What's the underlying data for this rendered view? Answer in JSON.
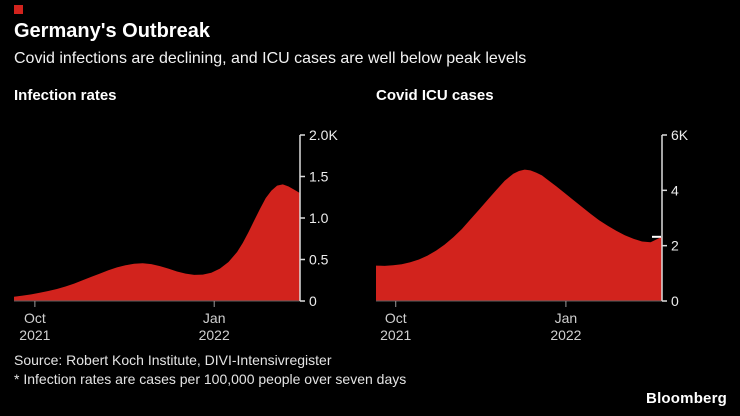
{
  "page": {
    "accent_color": "#d2231d",
    "title": "Germany's Outbreak",
    "subtitle": "Covid infections are declining, and ICU cases are well below peak levels"
  },
  "footer": {
    "source": "Source: Robert Koch Institute, DIVI-Intensivregister",
    "note": "* Infection rates are cases per 100,000 people over seven days",
    "brand": "Bloomberg"
  },
  "chart_data": [
    {
      "type": "area",
      "title": "Infection rates",
      "fill": "#d2231d",
      "background": "#000000",
      "grid": false,
      "y_axis_side": "right",
      "ylim": [
        0,
        2000
      ],
      "yticks": [
        {
          "v": 2000,
          "label": "2.0K"
        },
        {
          "v": 1500,
          "label": "1.5"
        },
        {
          "v": 1000,
          "label": "1.0"
        },
        {
          "v": 500,
          "label": "0.5"
        },
        {
          "v": 0,
          "label": "0"
        }
      ],
      "xticks": [
        {
          "f": 0.073,
          "label": "Oct",
          "year": "2021"
        },
        {
          "f": 0.7,
          "label": "Jan",
          "year": "2022"
        }
      ],
      "marker_value": null,
      "points": [
        [
          0.0,
          50
        ],
        [
          0.03,
          65
        ],
        [
          0.06,
          80
        ],
        [
          0.09,
          100
        ],
        [
          0.12,
          120
        ],
        [
          0.15,
          145
        ],
        [
          0.18,
          175
        ],
        [
          0.21,
          210
        ],
        [
          0.24,
          250
        ],
        [
          0.27,
          290
        ],
        [
          0.3,
          330
        ],
        [
          0.33,
          370
        ],
        [
          0.36,
          405
        ],
        [
          0.39,
          430
        ],
        [
          0.42,
          450
        ],
        [
          0.45,
          455
        ],
        [
          0.48,
          445
        ],
        [
          0.51,
          420
        ],
        [
          0.54,
          390
        ],
        [
          0.57,
          355
        ],
        [
          0.6,
          330
        ],
        [
          0.63,
          315
        ],
        [
          0.66,
          318
        ],
        [
          0.69,
          340
        ],
        [
          0.72,
          390
        ],
        [
          0.75,
          470
        ],
        [
          0.78,
          590
        ],
        [
          0.8,
          700
        ],
        [
          0.82,
          830
        ],
        [
          0.84,
          970
        ],
        [
          0.86,
          1110
        ],
        [
          0.88,
          1240
        ],
        [
          0.9,
          1330
        ],
        [
          0.92,
          1390
        ],
        [
          0.94,
          1405
        ],
        [
          0.96,
          1380
        ],
        [
          0.98,
          1340
        ],
        [
          1.0,
          1300
        ]
      ]
    },
    {
      "type": "area",
      "title": "Covid ICU cases",
      "fill": "#d2231d",
      "background": "#000000",
      "grid": false,
      "y_axis_side": "right",
      "ylim": [
        0,
        6000
      ],
      "yticks": [
        {
          "v": 6000,
          "label": "6K"
        },
        {
          "v": 4000,
          "label": "4"
        },
        {
          "v": 2000,
          "label": "2"
        },
        {
          "v": 0,
          "label": "0"
        }
      ],
      "xticks": [
        {
          "f": 0.069,
          "label": "Oct",
          "year": "2021"
        },
        {
          "f": 0.664,
          "label": "Jan",
          "year": "2022"
        }
      ],
      "marker_value": 2320,
      "points": [
        [
          0.0,
          1280
        ],
        [
          0.03,
          1270
        ],
        [
          0.06,
          1290
        ],
        [
          0.09,
          1330
        ],
        [
          0.12,
          1400
        ],
        [
          0.15,
          1500
        ],
        [
          0.18,
          1640
        ],
        [
          0.21,
          1820
        ],
        [
          0.24,
          2040
        ],
        [
          0.27,
          2300
        ],
        [
          0.3,
          2600
        ],
        [
          0.33,
          2950
        ],
        [
          0.36,
          3300
        ],
        [
          0.39,
          3650
        ],
        [
          0.42,
          4000
        ],
        [
          0.45,
          4350
        ],
        [
          0.48,
          4600
        ],
        [
          0.5,
          4700
        ],
        [
          0.52,
          4750
        ],
        [
          0.54,
          4720
        ],
        [
          0.56,
          4640
        ],
        [
          0.58,
          4540
        ],
        [
          0.6,
          4380
        ],
        [
          0.63,
          4150
        ],
        [
          0.66,
          3900
        ],
        [
          0.69,
          3650
        ],
        [
          0.72,
          3400
        ],
        [
          0.75,
          3150
        ],
        [
          0.78,
          2920
        ],
        [
          0.81,
          2720
        ],
        [
          0.84,
          2540
        ],
        [
          0.87,
          2380
        ],
        [
          0.9,
          2250
        ],
        [
          0.93,
          2150
        ],
        [
          0.96,
          2120
        ],
        [
          1.0,
          2320
        ]
      ]
    }
  ]
}
